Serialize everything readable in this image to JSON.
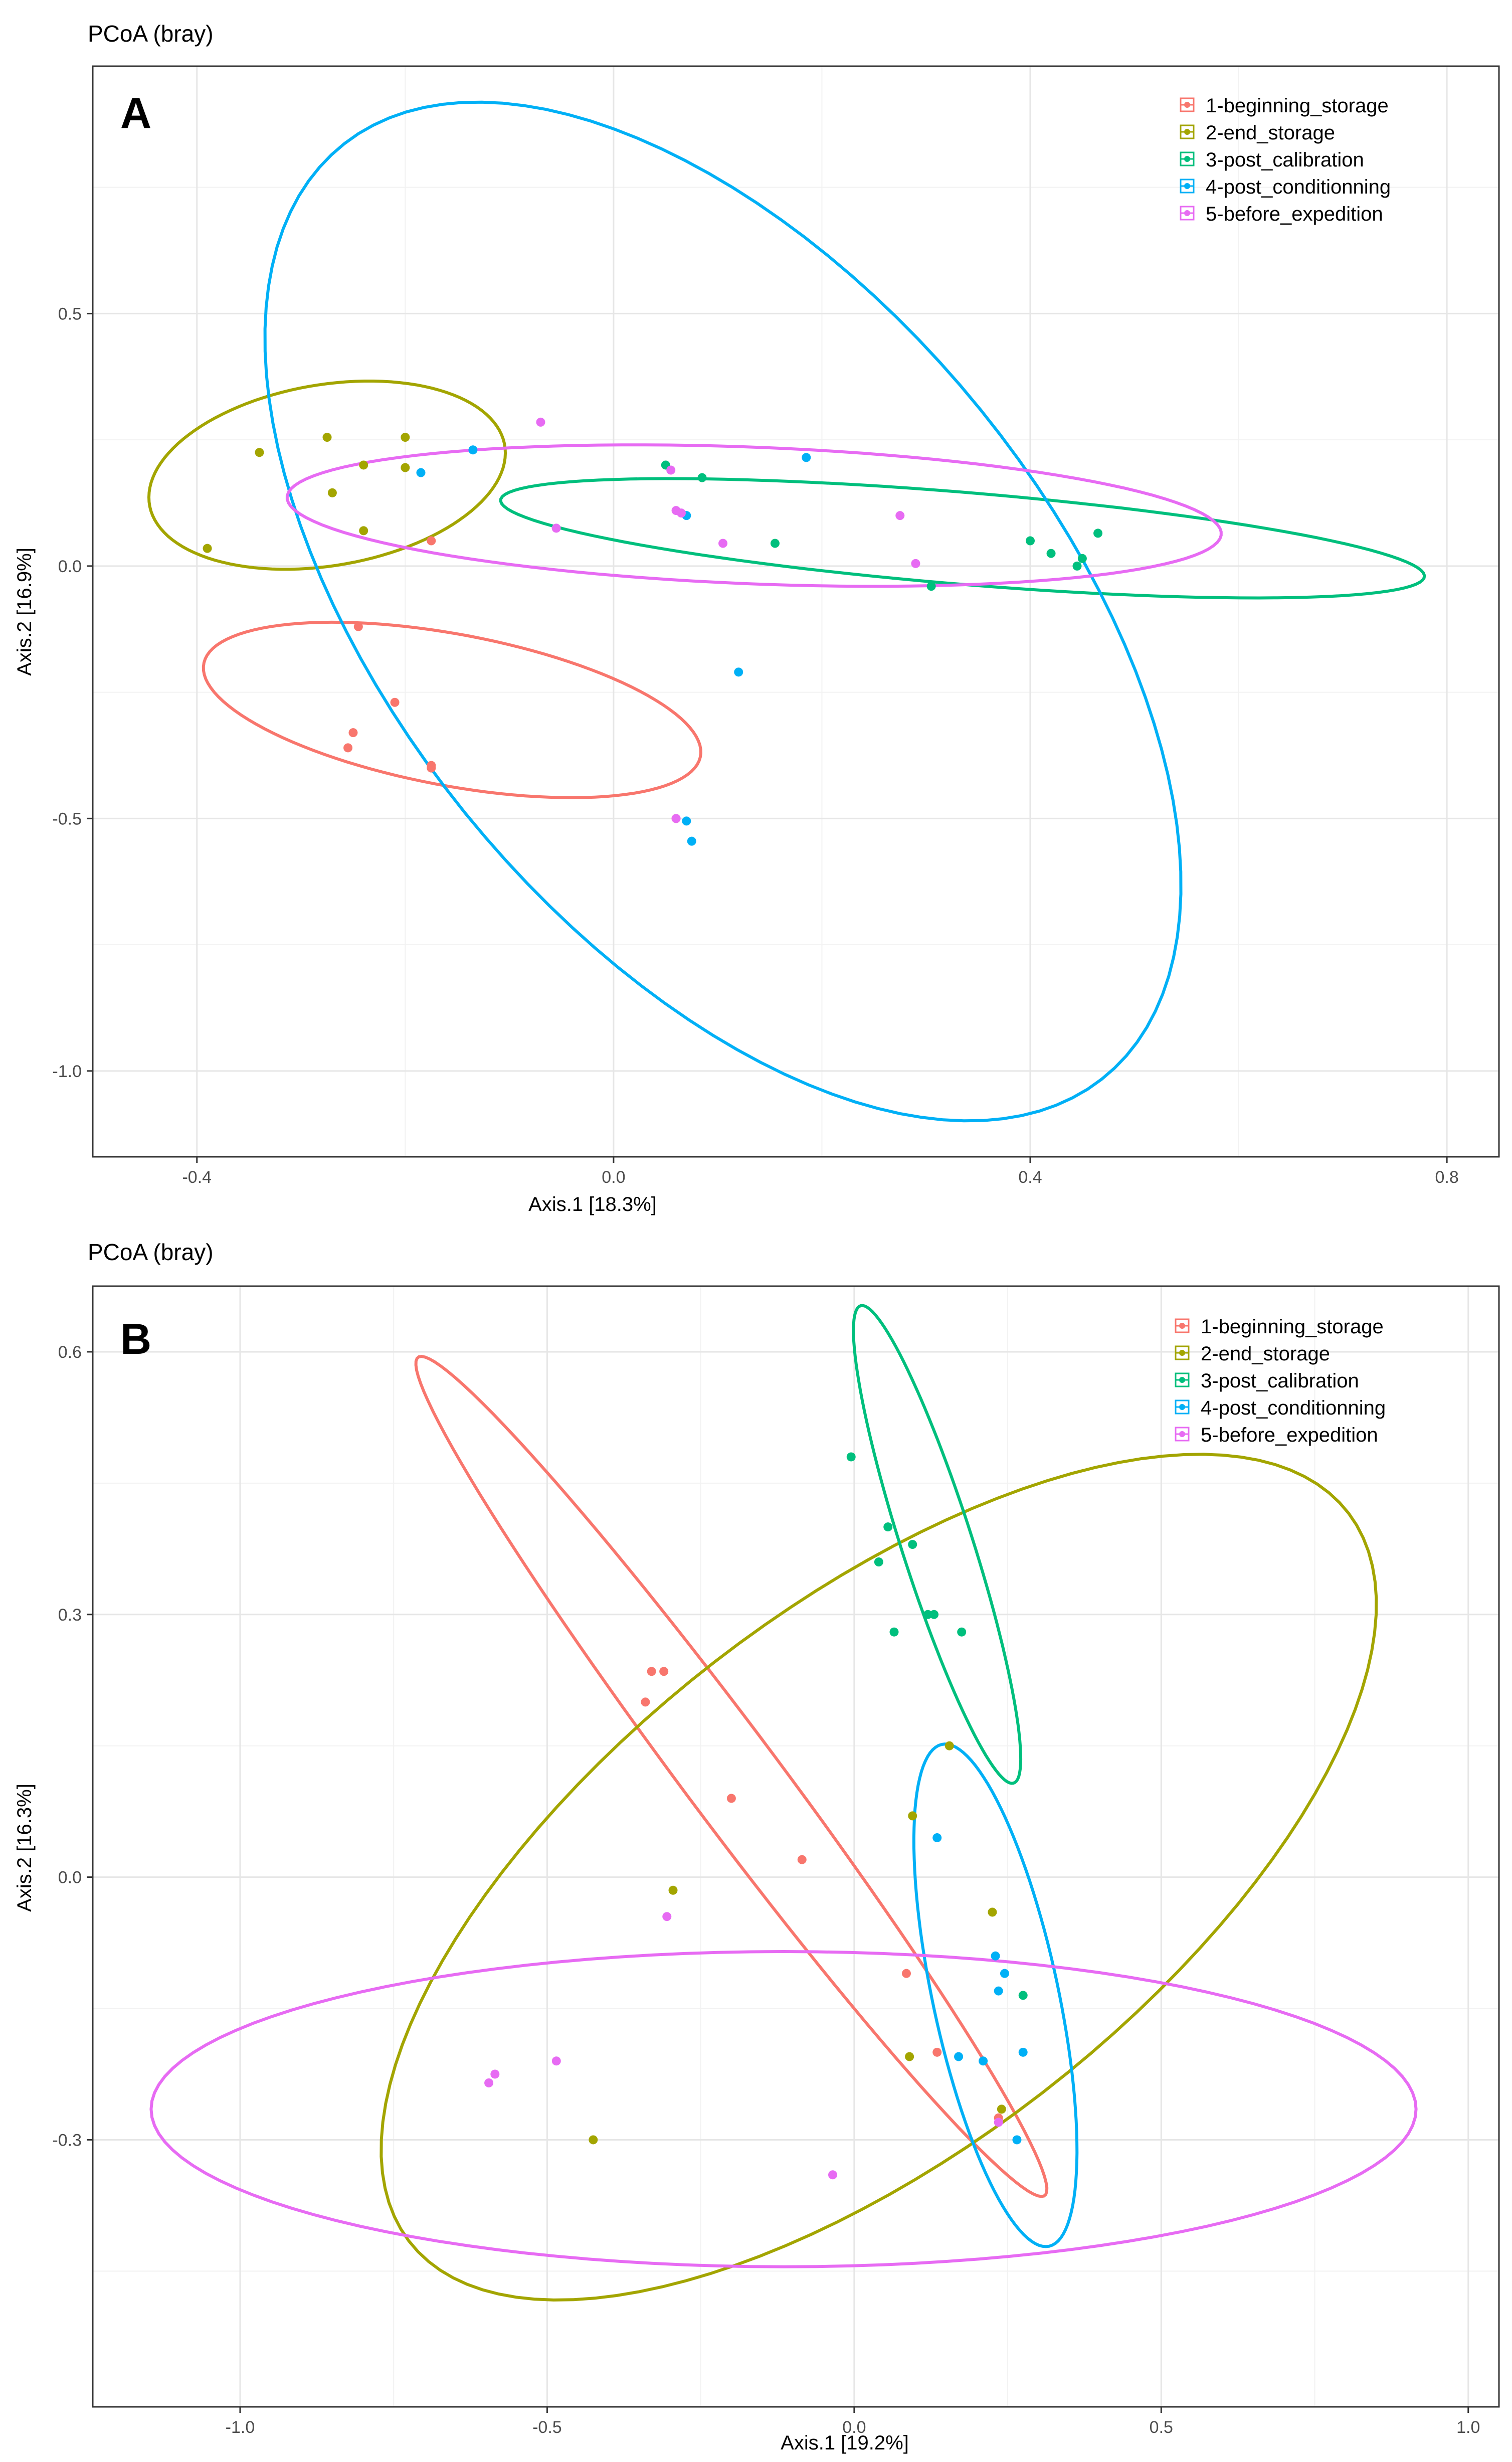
{
  "chart_data": [
    {
      "type": "scatter",
      "panel_letter": "A",
      "title": "PCoA (bray)",
      "xlabel": "Axis.1   [18.3%]",
      "ylabel": "Axis.2   [16.9%]",
      "xlim": [
        -0.5,
        0.85
      ],
      "ylim": [
        -1.17,
        0.99
      ],
      "xticks": [
        -0.4,
        0.0,
        0.4,
        0.8
      ],
      "xtick_labels": [
        "-0.4",
        "0.0",
        "0.4",
        "0.8"
      ],
      "yticks": [
        -1.0,
        -0.5,
        0.0,
        0.5
      ],
      "ytick_labels": [
        "-1.0",
        "-0.5",
        "0.0",
        "0.5"
      ],
      "grid": true,
      "legend_position": "top-right",
      "series": [
        {
          "name": "1-beginning_storage",
          "color": "#F8766D",
          "points": [
            [
              -0.245,
              -0.12
            ],
            [
              -0.21,
              -0.27
            ],
            [
              -0.25,
              -0.33
            ],
            [
              -0.255,
              -0.36
            ],
            [
              -0.175,
              -0.395
            ],
            [
              -0.175,
              -0.4
            ],
            [
              -0.175,
              0.05
            ],
            [
              0.06,
              -0.5
            ]
          ],
          "ellipse": {
            "cx": -0.155,
            "cy": -0.285,
            "rx": 0.26,
            "ry": 0.14,
            "angle_deg": -28
          }
        },
        {
          "name": "2-end_storage",
          "color": "#A3A500",
          "points": [
            [
              -0.39,
              0.035
            ],
            [
              -0.34,
              0.225
            ],
            [
              -0.275,
              0.255
            ],
            [
              -0.27,
              0.145
            ],
            [
              -0.24,
              0.2
            ],
            [
              -0.2,
              0.255
            ],
            [
              -0.2,
              0.195
            ],
            [
              -0.24,
              0.07
            ]
          ],
          "ellipse": {
            "cx": -0.275,
            "cy": 0.18,
            "rx": 0.155,
            "ry": 0.2,
            "angle_deg": -35
          }
        },
        {
          "name": "3-post_calibration",
          "color": "#00BF7D",
          "points": [
            [
              0.05,
              0.2
            ],
            [
              0.085,
              0.175
            ],
            [
              0.155,
              0.045
            ],
            [
              0.305,
              -0.04
            ],
            [
              0.4,
              0.05
            ],
            [
              0.42,
              0.025
            ],
            [
              0.445,
              0.0
            ],
            [
              0.45,
              0.015
            ],
            [
              0.465,
              0.065
            ]
          ],
          "ellipse": {
            "cx": 0.335,
            "cy": 0.055,
            "rx": 0.45,
            "ry": 0.09,
            "angle_deg": -10
          }
        },
        {
          "name": "4-post_conditionning",
          "color": "#00B0F6",
          "points": [
            [
              -0.185,
              0.185
            ],
            [
              -0.135,
              0.23
            ],
            [
              0.07,
              0.1
            ],
            [
              0.185,
              0.215
            ],
            [
              0.12,
              -0.21
            ],
            [
              0.07,
              -0.505
            ],
            [
              0.075,
              -0.545
            ]
          ],
          "ellipse": {
            "cx": 0.105,
            "cy": -0.09,
            "rx": 0.36,
            "ry": 1.04,
            "angle_deg": 15
          }
        },
        {
          "name": "5-before_expedition",
          "color": "#E76BF3",
          "points": [
            [
              -0.07,
              0.285
            ],
            [
              -0.055,
              0.075
            ],
            [
              0.055,
              0.19
            ],
            [
              0.06,
              0.11
            ],
            [
              0.065,
              0.105
            ],
            [
              0.105,
              0.045
            ],
            [
              0.275,
              0.1
            ],
            [
              0.29,
              0.005
            ],
            [
              0.06,
              -0.5
            ]
          ],
          "ellipse": {
            "cx": 0.135,
            "cy": 0.1,
            "rx": 0.45,
            "ry": 0.135,
            "angle_deg": -5
          }
        }
      ]
    },
    {
      "type": "scatter",
      "panel_letter": "B",
      "title": "PCoA (bray)",
      "xlabel": "Axis.1   [19.2%]",
      "ylabel": "Axis.2   [16.3%]",
      "xlim": [
        -1.24,
        1.05
      ],
      "ylim": [
        -0.605,
        0.675
      ],
      "xticks": [
        -1.0,
        -0.5,
        0.0,
        0.5,
        1.0
      ],
      "xtick_labels": [
        "-1.0",
        "-0.5",
        "0.0",
        "0.5",
        "1.0"
      ],
      "yticks": [
        -0.3,
        0.0,
        0.3,
        0.6
      ],
      "ytick_labels": [
        "-0.3",
        "0.0",
        "0.3",
        "0.6"
      ],
      "grid": true,
      "legend_position": "top-right",
      "series": [
        {
          "name": "1-beginning_storage",
          "color": "#F8766D",
          "points": [
            [
              -0.33,
              0.235
            ],
            [
              -0.31,
              0.235
            ],
            [
              -0.34,
              0.2
            ],
            [
              -0.2,
              0.09
            ],
            [
              -0.085,
              0.02
            ],
            [
              0.085,
              -0.11
            ],
            [
              0.135,
              -0.2
            ],
            [
              0.235,
              -0.275
            ]
          ],
          "ellipse": {
            "cx": -0.2,
            "cy": 0.115,
            "rx": 0.7,
            "ry": 0.065,
            "angle_deg": -43
          }
        },
        {
          "name": "2-end_storage",
          "color": "#A3A500",
          "points": [
            [
              0.155,
              0.15
            ],
            [
              0.095,
              0.07
            ],
            [
              0.225,
              -0.04
            ],
            [
              -0.295,
              -0.015
            ],
            [
              0.09,
              -0.205
            ],
            [
              -0.425,
              -0.3
            ],
            [
              0.24,
              -0.265
            ]
          ],
          "ellipse": {
            "cx": 0.04,
            "cy": 0.0,
            "rx": 0.88,
            "ry": 0.34,
            "angle_deg": 25
          }
        },
        {
          "name": "3-post_calibration",
          "color": "#00BF7D",
          "points": [
            [
              -0.005,
              0.48
            ],
            [
              0.055,
              0.4
            ],
            [
              0.095,
              0.38
            ],
            [
              0.04,
              0.36
            ],
            [
              0.12,
              0.3
            ],
            [
              0.13,
              0.3
            ],
            [
              0.065,
              0.28
            ],
            [
              0.175,
              0.28
            ],
            [
              0.275,
              -0.135
            ]
          ],
          "ellipse": {
            "cx": 0.135,
            "cy": 0.38,
            "rx": 0.3,
            "ry": 0.055,
            "angle_deg": -65
          }
        },
        {
          "name": "4-post_conditionning",
          "color": "#00B0F6",
          "points": [
            [
              0.135,
              0.045
            ],
            [
              0.23,
              -0.09
            ],
            [
              0.245,
              -0.11
            ],
            [
              0.235,
              -0.13
            ],
            [
              0.275,
              -0.2
            ],
            [
              0.17,
              -0.205
            ],
            [
              0.21,
              -0.21
            ],
            [
              0.265,
              -0.3
            ]
          ],
          "ellipse": {
            "cx": 0.23,
            "cy": -0.135,
            "rx": 0.3,
            "ry": 0.1,
            "angle_deg": -72
          }
        },
        {
          "name": "5-before_expedition",
          "color": "#E76BF3",
          "points": [
            [
              -0.305,
              -0.045
            ],
            [
              -0.585,
              -0.225
            ],
            [
              -0.595,
              -0.235
            ],
            [
              -0.485,
              -0.21
            ],
            [
              -0.035,
              -0.34
            ],
            [
              0.235,
              -0.28
            ]
          ],
          "ellipse": {
            "cx": -0.115,
            "cy": -0.265,
            "rx": 1.03,
            "ry": 0.18,
            "angle_deg": 0
          }
        }
      ]
    }
  ]
}
